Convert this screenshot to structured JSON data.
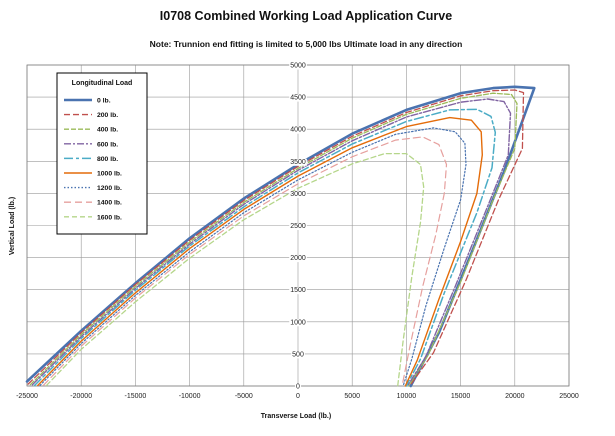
{
  "chart_data": {
    "type": "line",
    "title": "I0708 Combined Working Load Application Curve",
    "subtitle": "Note:  Trunnion end fitting is limited to 5,000 lbs Ultimate load in any direction",
    "xlabel": "Transverse Load (lb.)",
    "ylabel": "Vertical Load (lb.)",
    "xlim": [
      -25000,
      25000
    ],
    "ylim": [
      0,
      5000
    ],
    "xticks": [
      "-25000",
      "-20000",
      "-15000",
      "-10000",
      "-5000",
      "0",
      "5000",
      "10000",
      "15000",
      "20000",
      "25000"
    ],
    "yticks": [
      "0",
      "500",
      "1000",
      "1500",
      "2000",
      "2500",
      "3000",
      "3500",
      "4000",
      "4500",
      "5000"
    ],
    "grid": true,
    "legend_title": "Longitudinal Load",
    "legend_position": "top-left",
    "series": [
      {
        "name": "0 lb.",
        "color": "#4a73b0",
        "dash": "",
        "width": 2.6,
        "x": [
          -25000,
          -20000,
          -15000,
          -10000,
          -5000,
          0,
          5000,
          10000,
          15000,
          18000,
          20000,
          21800,
          19000,
          16000,
          13000,
          10400
        ],
        "y": [
          70,
          860,
          1600,
          2300,
          2920,
          3450,
          3930,
          4300,
          4560,
          4640,
          4660,
          4640,
          3340,
          2070,
          830,
          0
        ]
      },
      {
        "name": "200 lb.",
        "color": "#c0504d",
        "dash": "6,3",
        "width": 1.3,
        "x": [
          -24900,
          -20000,
          -15000,
          -10000,
          -5000,
          0,
          5000,
          10000,
          15000,
          18000,
          20000,
          20800,
          20700,
          18500,
          15500,
          12500,
          10300
        ],
        "y": [
          30,
          830,
          1580,
          2270,
          2890,
          3420,
          3890,
          4260,
          4520,
          4600,
          4610,
          4570,
          3700,
          2900,
          1650,
          520,
          0
        ]
      },
      {
        "name": "400 lb.",
        "color": "#9bbb59",
        "dash": "5,2",
        "width": 1.3,
        "x": [
          -24700,
          -20000,
          -15000,
          -10000,
          -5000,
          0,
          5000,
          10000,
          15000,
          18000,
          19700,
          20200,
          20000,
          18000,
          15000,
          12000,
          10200
        ],
        "y": [
          20,
          800,
          1550,
          2240,
          2860,
          3390,
          3860,
          4230,
          4480,
          4560,
          4540,
          4400,
          3700,
          2900,
          1620,
          480,
          0
        ]
      },
      {
        "name": "600 lb.",
        "color": "#8064a2",
        "dash": "7,2,2,2",
        "width": 1.4,
        "x": [
          -24500,
          -20000,
          -15000,
          -10000,
          -5000,
          0,
          5000,
          10000,
          15000,
          17500,
          19000,
          19600,
          19400,
          17500,
          14500,
          11800,
          10100
        ],
        "y": [
          20,
          770,
          1520,
          2210,
          2830,
          3360,
          3820,
          4190,
          4420,
          4470,
          4430,
          4250,
          3600,
          2800,
          1550,
          460,
          0
        ]
      },
      {
        "name": "800 lb.",
        "color": "#4bacc6",
        "dash": "9,3,3,3",
        "width": 1.5,
        "x": [
          -24300,
          -20000,
          -15000,
          -10000,
          -5000,
          0,
          5000,
          10000,
          14000,
          16500,
          17800,
          18200,
          17900,
          16500,
          13500,
          11300,
          10000
        ],
        "y": [
          10,
          740,
          1490,
          2180,
          2790,
          3320,
          3770,
          4120,
          4300,
          4310,
          4200,
          3950,
          3400,
          2700,
          1450,
          420,
          0
        ]
      },
      {
        "name": "1000 lb.",
        "color": "#e46c0a",
        "dash": "",
        "width": 1.4,
        "x": [
          -24000,
          -20000,
          -15000,
          -10000,
          -5000,
          0,
          5000,
          10000,
          14000,
          16000,
          16900,
          17000,
          16500,
          15000,
          13000,
          11000,
          9900
        ],
        "y": [
          10,
          700,
          1450,
          2140,
          2750,
          3270,
          3710,
          4040,
          4180,
          4140,
          3960,
          3600,
          3000,
          2250,
          1350,
          400,
          0
        ]
      },
      {
        "name": "1200 lb.",
        "color": "#4a73b0",
        "dash": "1.5,2",
        "width": 1.2,
        "x": [
          -23800,
          -20000,
          -15000,
          -10000,
          -5000,
          0,
          5000,
          9000,
          12500,
          14500,
          15400,
          15500,
          15000,
          13500,
          11800,
          10500,
          9700
        ],
        "y": [
          10,
          660,
          1410,
          2090,
          2700,
          3210,
          3640,
          3920,
          4020,
          3960,
          3780,
          3450,
          2900,
          2150,
          1250,
          420,
          0
        ]
      },
      {
        "name": "1400 lb.",
        "color": "#e6a09e",
        "dash": "7,4",
        "width": 1.2,
        "x": [
          -23500,
          -20000,
          -15000,
          -10000,
          -5000,
          0,
          5000,
          9000,
          11500,
          13000,
          13700,
          13500,
          12700,
          11500,
          10300,
          9600
        ],
        "y": [
          10,
          620,
          1370,
          2050,
          2650,
          3150,
          3570,
          3830,
          3880,
          3760,
          3450,
          3000,
          2350,
          1550,
          600,
          0
        ]
      },
      {
        "name": "1600 lb.",
        "color": "#b5d68a",
        "dash": "5,3",
        "width": 1.3,
        "x": [
          -23200,
          -20000,
          -15000,
          -10000,
          -5000,
          0,
          5000,
          8000,
          10000,
          11300,
          11600,
          11300,
          10500,
          9700,
          9200
        ],
        "y": [
          10,
          570,
          1310,
          1990,
          2590,
          3080,
          3460,
          3620,
          3620,
          3450,
          3100,
          2550,
          1700,
          700,
          0
        ]
      }
    ]
  }
}
